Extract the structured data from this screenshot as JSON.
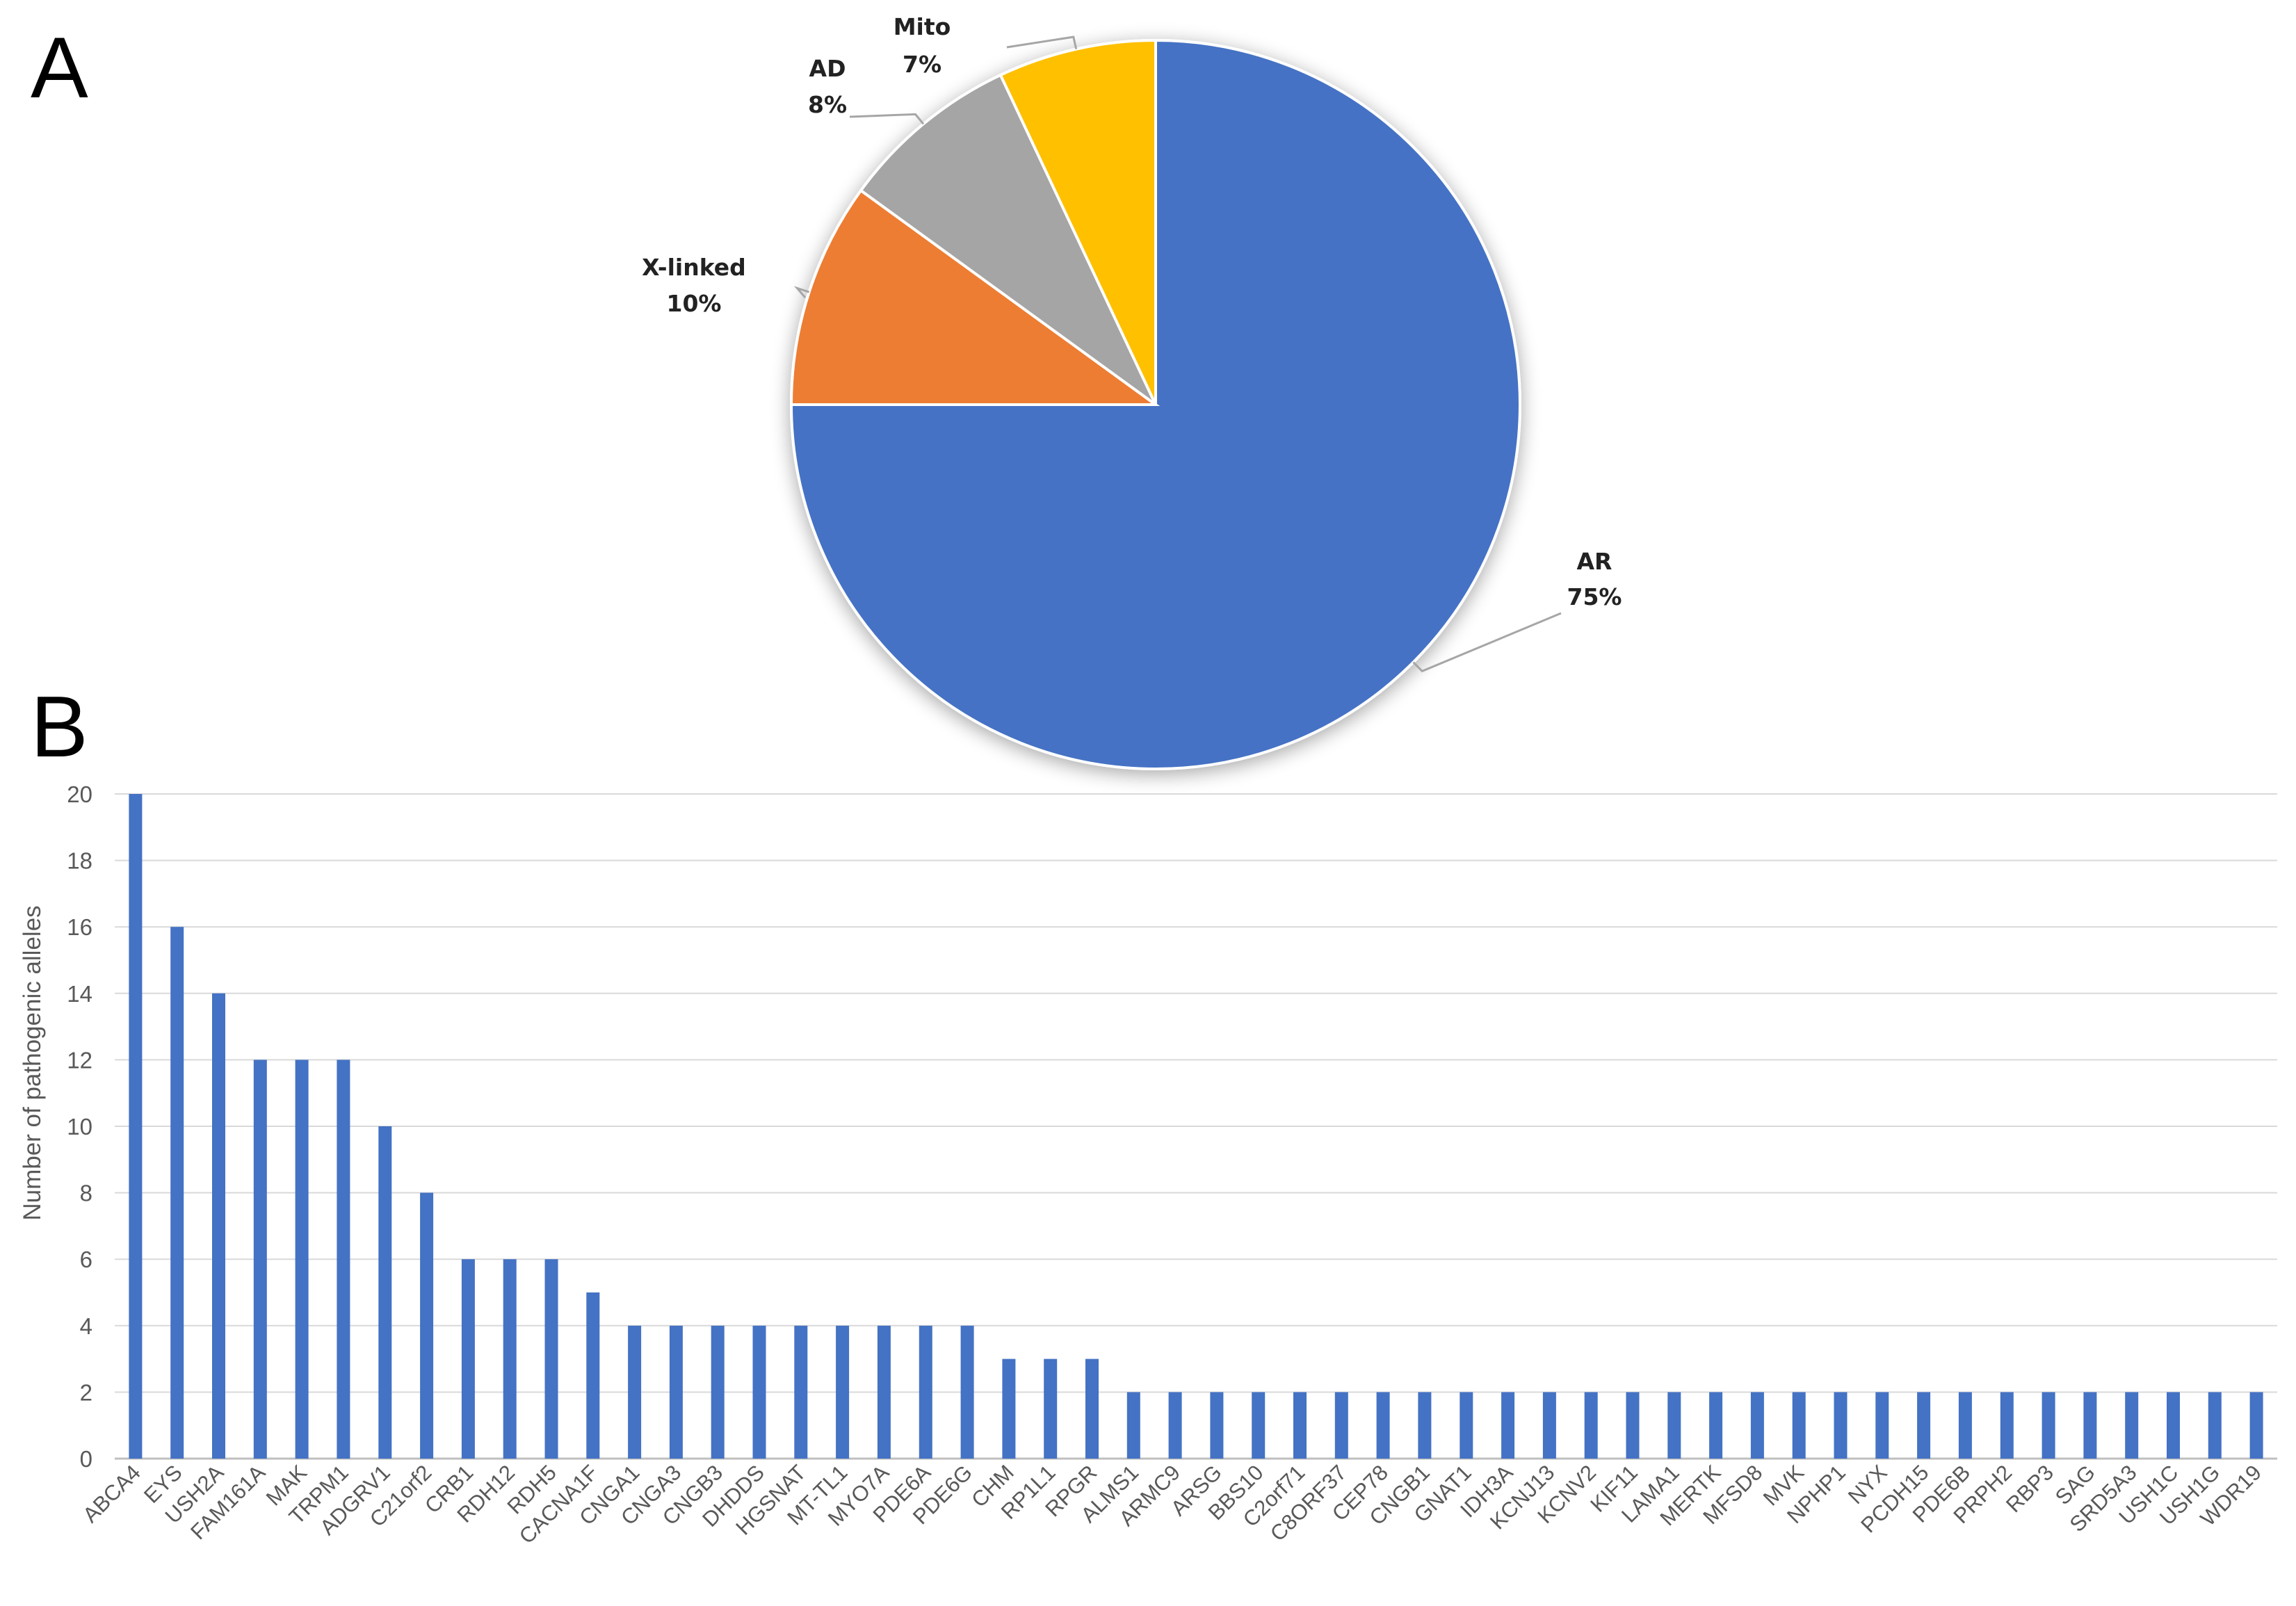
{
  "panels": {
    "a": "A",
    "b": "B"
  },
  "chart_data": [
    {
      "type": "pie",
      "slices": [
        {
          "label": "AR",
          "percent_label": "75%",
          "value": 75,
          "color": "#4472C4"
        },
        {
          "label": "X-linked",
          "percent_label": "10%",
          "value": 10,
          "color": "#ED7D31"
        },
        {
          "label": "AD",
          "percent_label": "8%",
          "value": 8,
          "color": "#A5A5A5"
        },
        {
          "label": "Mito",
          "percent_label": "7%",
          "value": 7,
          "color": "#FFC000"
        }
      ]
    },
    {
      "type": "bar",
      "ylabel": "Number of pathogenic alleles",
      "ylim": [
        0,
        20
      ],
      "yticks": [
        0,
        2,
        4,
        6,
        8,
        10,
        12,
        14,
        16,
        18,
        20
      ],
      "grid": true,
      "bar_color": "#4472C4",
      "categories": [
        "ABCA4",
        "EYS",
        "USH2A",
        "FAM161A",
        "MAK",
        "TRPM1",
        "ADGRV1",
        "C21orf2",
        "CRB1",
        "RDH12",
        "RDH5",
        "CACNA1F",
        "CNGA1",
        "CNGA3",
        "CNGB3",
        "DHDDS",
        "HGSNAT",
        "MT-TL1",
        "MYO7A",
        "PDE6A",
        "PDE6G",
        "CHM",
        "RP1L1",
        "RPGR",
        "ALMS1",
        "ARMC9",
        "ARSG",
        "BBS10",
        "C2orf71",
        "C8ORF37",
        "CEP78",
        "CNGB1",
        "GNAT1",
        "IDH3A",
        "KCNJ13",
        "KCNV2",
        "KIF11",
        "LAMA1",
        "MERTK",
        "MFSD8",
        "MVK",
        "NPHP1",
        "NYX",
        "PCDH15",
        "PDE6B",
        "PRPH2",
        "RBP3",
        "SAG",
        "SRD5A3",
        "USH1C",
        "USH1G",
        "WDR19"
      ],
      "values": [
        20,
        16,
        14,
        12,
        12,
        12,
        10,
        8,
        6,
        6,
        6,
        5,
        4,
        4,
        4,
        4,
        4,
        4,
        4,
        4,
        4,
        3,
        3,
        3,
        2,
        2,
        2,
        2,
        2,
        2,
        2,
        2,
        2,
        2,
        2,
        2,
        2,
        2,
        2,
        2,
        2,
        2,
        2,
        2,
        2,
        2,
        2,
        2,
        2,
        2,
        2,
        2
      ]
    }
  ]
}
